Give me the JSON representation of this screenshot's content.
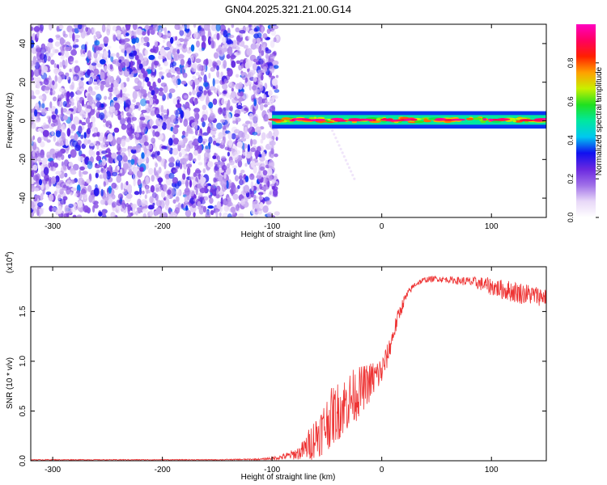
{
  "title": "GN04.2025.321.21.00.G14",
  "chart_data": [
    {
      "type": "heatmap",
      "xlabel": "Height of straight line (km)",
      "ylabel": "Frequency (Hz)",
      "xlim": [
        -320,
        150
      ],
      "ylim": [
        -50,
        50
      ],
      "xticks": [
        -300,
        -200,
        -100,
        0,
        100
      ],
      "yticks": [
        -40,
        -20,
        0,
        20,
        40
      ],
      "colorbar": {
        "label": "Normalized spectral amplitude",
        "range": [
          0.0,
          1.0
        ],
        "ticks": [
          "0.0",
          "0.2",
          "0.4",
          "0.6",
          "0.8"
        ],
        "colormap": [
          "#ffffff",
          "#e8d8f8",
          "#a070e8",
          "#6a28e0",
          "#1010f0",
          "#00c8f0",
          "#00e8a0",
          "#20e020",
          "#c8f000",
          "#ffa000",
          "#ff2000",
          "#ff0060",
          "#ff00c0"
        ]
      },
      "regions": [
        {
          "x": [
            -320,
            -95
          ],
          "f": [
            -50,
            50
          ],
          "pattern": "scattered noise",
          "amplitude": 0.15
        },
        {
          "x": [
            -100,
            150
          ],
          "f": [
            -2,
            3
          ],
          "pattern": "narrow band near 0 Hz",
          "amplitude": 0.75
        },
        {
          "x": [
            -225,
            -205
          ],
          "f": [
            10,
            35
          ],
          "pattern": "streak",
          "amplitude": 0.25
        },
        {
          "x": [
            -45,
            -25
          ],
          "f": [
            -30,
            -5
          ],
          "pattern": "faint streak",
          "amplitude": 0.08
        }
      ]
    },
    {
      "type": "line",
      "xlabel": "Height of straight line (km)",
      "ylabel": "SNR (10 * v/v)",
      "yscale_label": "(x10",
      "yscale_exp": "4",
      "xlim": [
        -320,
        150
      ],
      "ylim": [
        0,
        1.95
      ],
      "xticks": [
        -300,
        -200,
        -100,
        0,
        100
      ],
      "yticks": [
        "0.0",
        "0.5",
        "1.0",
        "1.5"
      ],
      "color": "#ee3333",
      "x": [
        -320,
        -250,
        -200,
        -150,
        -110,
        -95,
        -85,
        -75,
        -70,
        -65,
        -60,
        -55,
        -50,
        -45,
        -40,
        -35,
        -30,
        -25,
        -20,
        -15,
        -10,
        -5,
        0,
        5,
        10,
        15,
        20,
        25,
        30,
        35,
        40,
        50,
        60,
        70,
        80,
        90,
        100,
        110,
        120,
        130,
        140,
        150
      ],
      "y": [
        0.01,
        0.01,
        0.01,
        0.01,
        0.015,
        0.03,
        0.05,
        0.08,
        0.12,
        0.18,
        0.25,
        0.3,
        0.38,
        0.45,
        0.5,
        0.55,
        0.6,
        0.65,
        0.7,
        0.75,
        0.8,
        0.85,
        0.9,
        1.05,
        1.25,
        1.45,
        1.6,
        1.7,
        1.77,
        1.8,
        1.82,
        1.83,
        1.82,
        1.81,
        1.8,
        1.78,
        1.75,
        1.72,
        1.7,
        1.68,
        1.66,
        1.65
      ],
      "noise": [
        0.004,
        0.004,
        0.004,
        0.004,
        0.008,
        0.02,
        0.04,
        0.07,
        0.12,
        0.18,
        0.22,
        0.25,
        0.28,
        0.3,
        0.3,
        0.3,
        0.3,
        0.28,
        0.25,
        0.22,
        0.2,
        0.18,
        0.15,
        0.12,
        0.1,
        0.08,
        0.06,
        0.04,
        0.03,
        0.03,
        0.03,
        0.03,
        0.03,
        0.04,
        0.05,
        0.07,
        0.09,
        0.1,
        0.11,
        0.11,
        0.1,
        0.1
      ]
    }
  ]
}
